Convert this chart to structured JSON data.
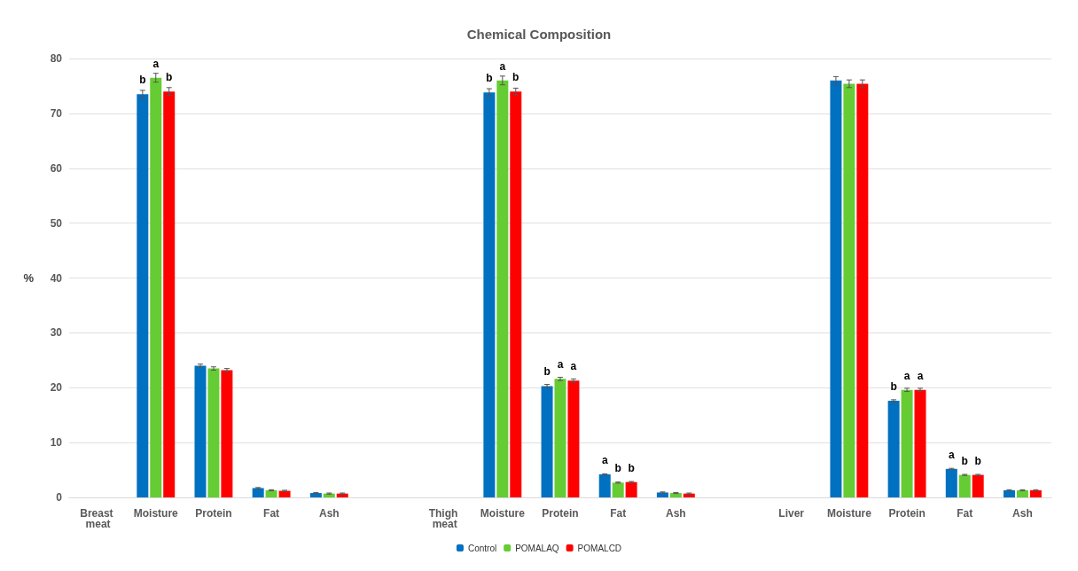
{
  "chart_data": {
    "type": "bar",
    "title": "Chemical Composition",
    "ylabel": "%",
    "categories": [
      "Breast meat",
      "Moisture",
      "Protein",
      "Fat",
      "Ash",
      null,
      "Thigh meat",
      "Moisture",
      "Protein",
      "Fat",
      "Ash",
      null,
      "Liver",
      "Moisture",
      "Protein",
      "Fat",
      "Ash"
    ],
    "series": [
      {
        "name": "Control",
        "color": "#0070c0",
        "values": [
          null,
          73.5,
          24,
          1.7,
          0.8,
          null,
          null,
          73.8,
          20.3,
          4.2,
          0.9,
          null,
          null,
          76,
          17.6,
          5.2,
          1.3
        ],
        "errors": [
          null,
          0.7,
          0.3,
          0.1,
          0.1,
          null,
          null,
          0.7,
          0.3,
          0.1,
          0.1,
          null,
          null,
          0.7,
          0.2,
          0.1,
          0.1
        ],
        "value_labels": [
          null,
          "b",
          null,
          null,
          null,
          null,
          null,
          "b",
          "b",
          "a",
          null,
          null,
          null,
          null,
          "b",
          "a",
          null
        ]
      },
      {
        "name": "POMALAQ",
        "color": "#66cc33",
        "values": [
          null,
          76.5,
          23.5,
          1.3,
          0.7,
          null,
          null,
          76,
          21.6,
          2.7,
          0.8,
          null,
          null,
          75.4,
          19.6,
          4.1,
          1.3
        ],
        "errors": [
          null,
          0.8,
          0.3,
          0.1,
          0.1,
          null,
          null,
          0.8,
          0.3,
          0.1,
          0.1,
          null,
          null,
          0.7,
          0.3,
          0.1,
          0.1
        ],
        "value_labels": [
          null,
          "a",
          null,
          null,
          null,
          null,
          null,
          "a",
          "a",
          "b",
          null,
          null,
          null,
          null,
          "a",
          "b",
          null
        ]
      },
      {
        "name": "POMALCD",
        "color": "#ff0000",
        "values": [
          null,
          74,
          23.2,
          1.2,
          0.7,
          null,
          null,
          74,
          21.3,
          2.8,
          0.7,
          null,
          null,
          75.4,
          19.6,
          4.1,
          1.3
        ],
        "errors": [
          null,
          0.7,
          0.3,
          0.1,
          0.1,
          null,
          null,
          0.6,
          0.3,
          0.1,
          0.1,
          null,
          null,
          0.7,
          0.3,
          0.1,
          0.1
        ],
        "value_labels": [
          null,
          "b",
          null,
          null,
          null,
          null,
          null,
          "b",
          "a",
          "b",
          null,
          null,
          null,
          null,
          "a",
          "b",
          null
        ]
      }
    ],
    "ylim": [
      0,
      80
    ],
    "yticks": [
      0,
      10,
      20,
      30,
      40,
      50,
      60,
      70,
      80
    ],
    "grid": "y",
    "legend": "bottom"
  }
}
